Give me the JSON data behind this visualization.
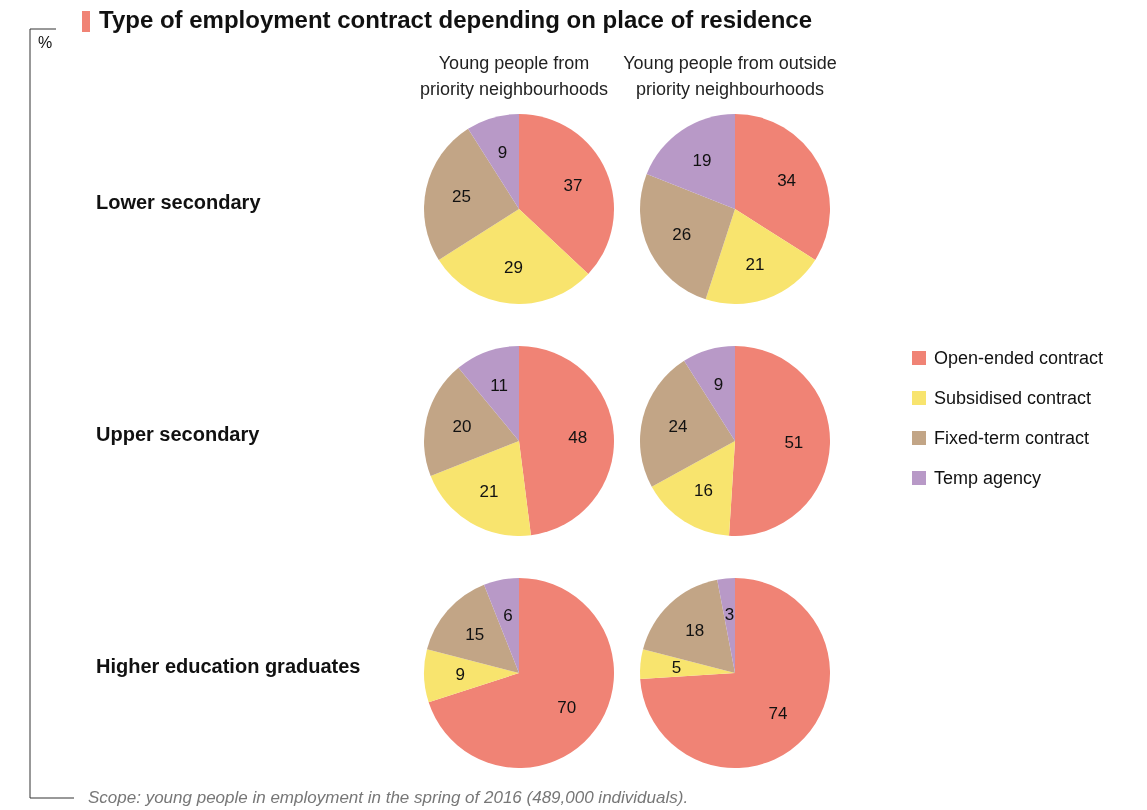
{
  "chart_data": [
    {
      "type": "pie",
      "title": "Young people from\npriority neighbourhoods",
      "ylabel": "Lower secondary",
      "values": [
        37,
        29,
        25,
        9
      ],
      "colors": [
        "#f08375",
        "#f8e46e",
        "#c2a586",
        "#b899c7"
      ],
      "data_labels": true
    },
    {
      "type": "pie",
      "title": "Young people from outside\npriority neighbourhoods",
      "values": [
        34,
        21,
        26,
        19
      ],
      "colors": [
        "#f08375",
        "#f8e46e",
        "#c2a586",
        "#b899c7"
      ],
      "data_labels": true
    },
    {
      "type": "pie",
      "ylabel": "Upper secondary",
      "values": [
        48,
        21,
        20,
        11
      ],
      "colors": [
        "#f08375",
        "#f8e46e",
        "#c2a586",
        "#b899c7"
      ],
      "data_labels": true
    },
    {
      "type": "pie",
      "categories": [
        "Open-ended contract",
        "Subsidised contract",
        "Fixed-term contract",
        "Temp agency"
      ],
      "values": [
        51,
        16,
        24,
        9
      ],
      "colors": [
        "#f08375",
        "#f8e46e",
        "#c2a586",
        "#b899c7"
      ],
      "data_labels": true,
      "legend": "right"
    },
    {
      "type": "pie",
      "ylabel": "Higher education graduates",
      "values": [
        70,
        9,
        15,
        6
      ],
      "colors": [
        "#f08375",
        "#f8e46e",
        "#c2a586",
        "#b899c7"
      ],
      "data_labels": true
    },
    {
      "type": "pie",
      "values": [
        74,
        5,
        18,
        3
      ],
      "colors": [
        "#f08375",
        "#f8e46e",
        "#c2a586",
        "#b899c7"
      ],
      "data_labels": true
    },
    {
      "type": "other",
      "title": "Type of employment contract depending on place of residence",
      "annotations": [
        "%",
        "Scope: young people in employment in the spring of 2016 (489,000 individuals)."
      ]
    }
  ]
}
